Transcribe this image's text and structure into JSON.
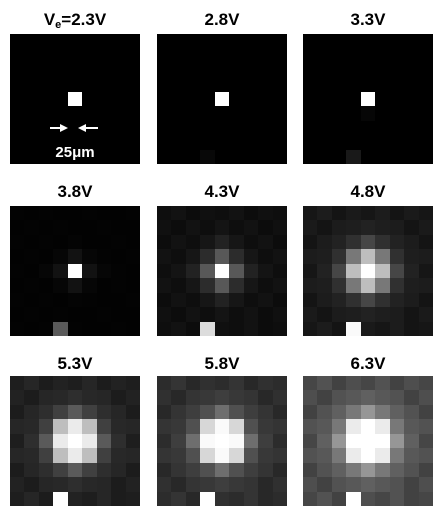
{
  "panels": [
    {
      "title_main": "V",
      "title_sub": "e",
      "title_rest": "=2.3V",
      "grid": [
        [
          0,
          0,
          0,
          0,
          0,
          0,
          0,
          0,
          0
        ],
        [
          0,
          0,
          0,
          0,
          0,
          0,
          0,
          0,
          0
        ],
        [
          0,
          0,
          0,
          0,
          0,
          0,
          0,
          0,
          0
        ],
        [
          0,
          0,
          0,
          0,
          0,
          0,
          0,
          0,
          0
        ],
        [
          0,
          0,
          0,
          0,
          255,
          0,
          0,
          0,
          0
        ],
        [
          0,
          0,
          0,
          0,
          0,
          0,
          0,
          0,
          0
        ],
        [
          0,
          0,
          0,
          0,
          0,
          0,
          0,
          0,
          0
        ],
        [
          0,
          0,
          0,
          0,
          0,
          0,
          0,
          0,
          0
        ],
        [
          0,
          0,
          0,
          0,
          0,
          0,
          0,
          0,
          0
        ]
      ]
    },
    {
      "title_main": "2.8V",
      "grid": [
        [
          0,
          0,
          0,
          0,
          0,
          0,
          0,
          0,
          0
        ],
        [
          0,
          0,
          0,
          0,
          0,
          0,
          0,
          0,
          0
        ],
        [
          0,
          0,
          0,
          0,
          0,
          0,
          0,
          0,
          0
        ],
        [
          0,
          0,
          0,
          0,
          0,
          0,
          0,
          0,
          0
        ],
        [
          0,
          0,
          0,
          0,
          255,
          0,
          0,
          0,
          0
        ],
        [
          0,
          0,
          0,
          0,
          0,
          0,
          0,
          0,
          0
        ],
        [
          0,
          0,
          0,
          0,
          0,
          0,
          0,
          0,
          0
        ],
        [
          0,
          0,
          0,
          0,
          0,
          0,
          0,
          0,
          0
        ],
        [
          0,
          0,
          0,
          8,
          0,
          0,
          0,
          0,
          0
        ]
      ]
    },
    {
      "title_main": "3.3V",
      "grid": [
        [
          0,
          0,
          0,
          0,
          0,
          0,
          0,
          0,
          0
        ],
        [
          0,
          0,
          0,
          0,
          0,
          0,
          0,
          0,
          0
        ],
        [
          0,
          0,
          0,
          0,
          0,
          0,
          0,
          0,
          0
        ],
        [
          0,
          0,
          0,
          0,
          0,
          0,
          0,
          0,
          0
        ],
        [
          0,
          0,
          0,
          0,
          255,
          0,
          0,
          0,
          0
        ],
        [
          0,
          0,
          0,
          0,
          6,
          0,
          0,
          0,
          0
        ],
        [
          0,
          0,
          0,
          0,
          0,
          0,
          0,
          0,
          0
        ],
        [
          0,
          0,
          0,
          0,
          0,
          0,
          0,
          0,
          0
        ],
        [
          0,
          0,
          0,
          25,
          0,
          0,
          0,
          0,
          0
        ]
      ]
    },
    {
      "title_main": "3.8V",
      "grid": [
        [
          3,
          2,
          3,
          2,
          2,
          3,
          2,
          2,
          3
        ],
        [
          2,
          3,
          2,
          3,
          2,
          2,
          3,
          2,
          2
        ],
        [
          3,
          2,
          3,
          2,
          4,
          2,
          2,
          3,
          2
        ],
        [
          2,
          3,
          2,
          6,
          18,
          6,
          3,
          2,
          3
        ],
        [
          3,
          2,
          6,
          18,
          255,
          18,
          6,
          3,
          2
        ],
        [
          2,
          3,
          2,
          6,
          18,
          6,
          2,
          3,
          2
        ],
        [
          3,
          2,
          3,
          2,
          4,
          3,
          2,
          2,
          3
        ],
        [
          2,
          3,
          2,
          3,
          2,
          2,
          3,
          2,
          2
        ],
        [
          3,
          2,
          3,
          90,
          3,
          2,
          2,
          3,
          2
        ]
      ]
    },
    {
      "title_main": "4.3V",
      "grid": [
        [
          14,
          18,
          12,
          16,
          14,
          18,
          12,
          16,
          14
        ],
        [
          16,
          12,
          18,
          14,
          20,
          14,
          18,
          12,
          16
        ],
        [
          12,
          18,
          14,
          22,
          34,
          22,
          14,
          18,
          12
        ],
        [
          18,
          14,
          22,
          44,
          88,
          44,
          22,
          14,
          18
        ],
        [
          14,
          20,
          34,
          88,
          255,
          88,
          34,
          20,
          14
        ],
        [
          18,
          14,
          22,
          44,
          88,
          44,
          22,
          14,
          18
        ],
        [
          12,
          18,
          14,
          22,
          34,
          22,
          14,
          18,
          12
        ],
        [
          16,
          12,
          18,
          14,
          20,
          14,
          18,
          12,
          16
        ],
        [
          14,
          18,
          12,
          220,
          16,
          14,
          18,
          12,
          14
        ]
      ]
    },
    {
      "title_main": "4.8V",
      "grid": [
        [
          22,
          28,
          20,
          26,
          22,
          28,
          20,
          26,
          22
        ],
        [
          26,
          20,
          28,
          30,
          34,
          30,
          28,
          20,
          26
        ],
        [
          20,
          28,
          34,
          48,
          70,
          48,
          34,
          28,
          20
        ],
        [
          28,
          30,
          48,
          120,
          190,
          120,
          48,
          30,
          28
        ],
        [
          22,
          34,
          70,
          190,
          255,
          190,
          70,
          34,
          22
        ],
        [
          28,
          30,
          48,
          120,
          190,
          120,
          48,
          30,
          28
        ],
        [
          20,
          28,
          34,
          48,
          70,
          48,
          34,
          28,
          20
        ],
        [
          26,
          20,
          28,
          30,
          34,
          30,
          28,
          20,
          26
        ],
        [
          22,
          28,
          20,
          250,
          26,
          22,
          28,
          20,
          22
        ]
      ]
    },
    {
      "title_main": "5.3V",
      "grid": [
        [
          30,
          38,
          28,
          34,
          30,
          38,
          28,
          34,
          30
        ],
        [
          34,
          28,
          38,
          40,
          46,
          40,
          38,
          28,
          34
        ],
        [
          28,
          38,
          46,
          64,
          90,
          64,
          46,
          38,
          28
        ],
        [
          38,
          40,
          64,
          190,
          235,
          190,
          64,
          40,
          38
        ],
        [
          30,
          46,
          90,
          235,
          255,
          235,
          90,
          46,
          30
        ],
        [
          38,
          40,
          64,
          190,
          235,
          190,
          64,
          40,
          38
        ],
        [
          28,
          38,
          46,
          64,
          90,
          64,
          46,
          38,
          28
        ],
        [
          34,
          28,
          38,
          40,
          46,
          40,
          38,
          28,
          34
        ],
        [
          30,
          38,
          28,
          255,
          34,
          30,
          38,
          28,
          30
        ]
      ]
    },
    {
      "title_main": "5.8V",
      "grid": [
        [
          44,
          52,
          40,
          48,
          44,
          52,
          40,
          48,
          44
        ],
        [
          48,
          40,
          52,
          56,
          62,
          56,
          52,
          40,
          48
        ],
        [
          40,
          52,
          62,
          80,
          110,
          80,
          62,
          52,
          40
        ],
        [
          52,
          56,
          80,
          215,
          250,
          215,
          80,
          56,
          52
        ],
        [
          44,
          62,
          110,
          250,
          255,
          250,
          110,
          62,
          44
        ],
        [
          52,
          56,
          80,
          215,
          250,
          215,
          80,
          56,
          52
        ],
        [
          40,
          52,
          62,
          80,
          110,
          80,
          62,
          52,
          40
        ],
        [
          48,
          40,
          52,
          56,
          62,
          56,
          52,
          40,
          48
        ],
        [
          44,
          52,
          40,
          255,
          48,
          44,
          52,
          40,
          44
        ]
      ]
    },
    {
      "title_main": "6.3V",
      "grid": [
        [
          70,
          82,
          66,
          78,
          70,
          82,
          66,
          78,
          70
        ],
        [
          78,
          66,
          82,
          88,
          96,
          88,
          82,
          66,
          78
        ],
        [
          66,
          82,
          96,
          120,
          150,
          120,
          96,
          82,
          66
        ],
        [
          82,
          88,
          120,
          235,
          255,
          235,
          120,
          88,
          82
        ],
        [
          70,
          96,
          150,
          255,
          255,
          255,
          150,
          96,
          70
        ],
        [
          82,
          88,
          120,
          235,
          255,
          235,
          120,
          88,
          82
        ],
        [
          66,
          82,
          96,
          120,
          150,
          120,
          96,
          82,
          66
        ],
        [
          78,
          66,
          82,
          88,
          96,
          88,
          82,
          66,
          78
        ],
        [
          70,
          82,
          66,
          255,
          78,
          70,
          82,
          66,
          70
        ]
      ]
    }
  ],
  "scalebar": {
    "label": "25μm"
  }
}
